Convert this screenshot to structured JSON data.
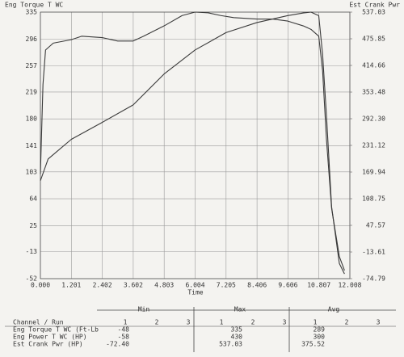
{
  "chart_data": {
    "type": "line",
    "y_axis_label": "Eng Torque T WC",
    "y2_axis_label": "Est Crank Pwr",
    "x_axis_label": "Time",
    "xlim": [
      0,
      12.008
    ],
    "xticks": [
      {
        "value": 0,
        "label": "0.000"
      },
      1.201,
      2.402,
      3.602,
      4.803,
      6.004,
      7.205,
      8.406,
      9.606,
      10.807,
      12.008
    ],
    "ylim": [
      -52,
      335
    ],
    "yticks": [
      -52,
      -13,
      25,
      64,
      103,
      141,
      180,
      219,
      257,
      296,
      335
    ],
    "y2lim": [
      -74.79,
      537.03
    ],
    "y2ticks": [
      -74.79,
      -13.61,
      47.57,
      108.75,
      169.94,
      231.12,
      {
        "value": 292.3,
        "label": "292.30"
      },
      353.48,
      414.66,
      475.85,
      537.03
    ],
    "grid": true,
    "series": [
      {
        "name": "Eng Torque T WC",
        "color": "#3a3a3a",
        "x": [
          0,
          0.1,
          0.2,
          0.5,
          1.2,
          1.6,
          2.4,
          3.0,
          3.6,
          4.0,
          4.8,
          5.5,
          6.0,
          6.5,
          7.0,
          7.5,
          8.4,
          9.0,
          9.6,
          10.2,
          10.5,
          10.8,
          10.95,
          11.1,
          11.3,
          11.6,
          11.8
        ],
        "values": [
          100,
          230,
          280,
          290,
          295,
          300,
          298,
          293,
          293,
          300,
          315,
          330,
          335,
          334,
          330,
          327,
          325,
          325,
          322,
          315,
          310,
          300,
          250,
          150,
          50,
          -20,
          -40
        ]
      },
      {
        "name": "Est Crank Pwr",
        "color": "#3a3a3a",
        "axis": "y2",
        "x": [
          0,
          0.3,
          0.6,
          1.2,
          2.4,
          3.6,
          4.8,
          6.0,
          7.2,
          8.4,
          9.6,
          10.2,
          10.5,
          10.8,
          10.95,
          11.1,
          11.3,
          11.6,
          11.8
        ],
        "values": [
          150,
          200,
          215,
          245,
          284,
          324,
          395,
          450,
          490,
          513,
          529,
          535,
          537.03,
          529,
          440,
          300,
          90,
          -40,
          -64
        ]
      }
    ]
  },
  "table": {
    "run_header": "Channel / Run",
    "group_headers": [
      "Min",
      "Max",
      "Avg"
    ],
    "runs": [
      "1",
      "2",
      "3"
    ],
    "rows": [
      [
        "Eng Torque T WC (Ft-Lb",
        "-48",
        "335",
        "289"
      ],
      [
        "Eng Power T WC (HP)",
        "-58",
        "430",
        "300"
      ],
      [
        "Est Crank Pwr (HP)",
        "-72.40",
        "537.03",
        "375.52"
      ]
    ]
  }
}
